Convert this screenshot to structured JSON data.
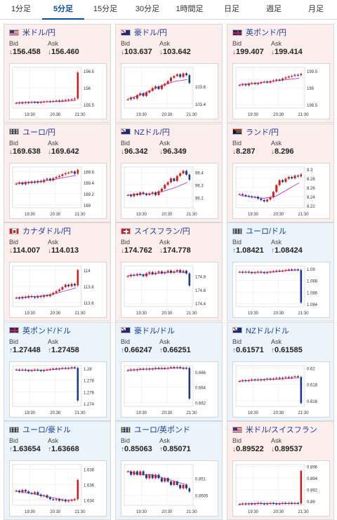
{
  "tabs": [
    {
      "label": "1分足",
      "active": false
    },
    {
      "label": "5分足",
      "active": true
    },
    {
      "label": "15分足",
      "active": false
    },
    {
      "label": "30分足",
      "active": false
    },
    {
      "label": "1時間足",
      "active": false
    },
    {
      "label": "日足",
      "active": false
    },
    {
      "label": "週足",
      "active": false
    },
    {
      "label": "月足",
      "active": false
    }
  ],
  "labels": {
    "bid": "Bid",
    "ask": "Ask",
    "down_arrow": "↓",
    "up_arrow": "↑"
  },
  "colors": {
    "down_card": "#fdeeee",
    "up_card": "#ebf4fb",
    "candle_up": "#d21e1e",
    "candle_down": "#1e3a8a",
    "ma_line": "#c23bd4"
  },
  "cards": [
    {
      "title": "米ドル/円",
      "flag": "us",
      "direction": "down",
      "bid": "156.458",
      "ask": "156.460",
      "chart_data": {
        "type": "candlestick",
        "x_ticks": [
          "19:30",
          "20:30",
          "21:30"
        ],
        "y_ticks": [
          "156.5",
          "156",
          "155.5"
        ],
        "y_range": [
          155.4,
          156.6
        ],
        "last_bar": "up",
        "closes": [
          155.55,
          155.56,
          155.55,
          155.57,
          155.56,
          155.58,
          155.57,
          155.56,
          155.58,
          155.59,
          155.6,
          155.59,
          155.61,
          155.62,
          155.6,
          155.63,
          155.64,
          155.65,
          155.66,
          155.68,
          156.45
        ],
        "ma": [
          155.56,
          155.57,
          155.58,
          155.59,
          155.6,
          155.62
        ]
      }
    },
    {
      "title": "豪ドル/円",
      "flag": "au",
      "direction": "down",
      "bid": "103.637",
      "ask": "103.642",
      "chart_data": {
        "type": "candlestick",
        "x_ticks": [
          "19:30",
          "20:30",
          "21:30"
        ],
        "y_ticks": [
          "103.6",
          "103.4"
        ],
        "y_range": [
          103.35,
          103.82
        ],
        "last_bar": "down",
        "closes": [
          103.45,
          103.47,
          103.46,
          103.5,
          103.52,
          103.49,
          103.53,
          103.55,
          103.58,
          103.6,
          103.57,
          103.61,
          103.63,
          103.66,
          103.7,
          103.72,
          103.74,
          103.71,
          103.75,
          103.73,
          103.64
        ],
        "ma": [
          103.46,
          103.5,
          103.56,
          103.62,
          103.66,
          103.68
        ]
      }
    },
    {
      "title": "英ポンド/円",
      "flag": "gb",
      "direction": "down",
      "bid": "199.407",
      "ask": "199.414",
      "chart_data": {
        "type": "candlestick",
        "x_ticks": [
          "19:30",
          "20:30",
          "21:30"
        ],
        "y_ticks": [
          "199.5",
          "199",
          "198.5"
        ],
        "y_range": [
          198.4,
          199.6
        ],
        "last_bar": "up",
        "closes": [
          199.08,
          199.1,
          199.07,
          199.12,
          199.14,
          199.11,
          199.13,
          199.16,
          199.18,
          199.15,
          199.19,
          199.21,
          199.24,
          199.22,
          199.27,
          199.3,
          199.33,
          199.35,
          199.38,
          199.37,
          199.41
        ],
        "ma": [
          199.1,
          199.12,
          199.16,
          199.2,
          199.24,
          199.28
        ]
      }
    },
    {
      "title": "ユーロ/円",
      "flag": "eu",
      "direction": "down",
      "bid": "169.638",
      "ask": "169.642",
      "chart_data": {
        "type": "candlestick",
        "x_ticks": [
          "19:30",
          "20:30",
          "21:30"
        ],
        "y_ticks": [
          "169.6",
          "169.4",
          "169.2",
          "169"
        ],
        "y_range": [
          168.95,
          169.68
        ],
        "last_bar": "down",
        "closes": [
          169.38,
          169.4,
          169.37,
          169.41,
          169.39,
          169.42,
          169.4,
          169.43,
          169.41,
          169.45,
          169.47,
          169.44,
          169.48,
          169.5,
          169.52,
          169.55,
          169.57,
          169.58,
          169.6,
          169.56,
          169.63
        ],
        "ma": [
          169.39,
          169.4,
          169.42,
          169.45,
          169.49,
          169.53
        ]
      }
    },
    {
      "title": "NZドル/円",
      "flag": "nz",
      "direction": "down",
      "bid": "96.342",
      "ask": "96.349",
      "chart_data": {
        "type": "candlestick",
        "x_ticks": [
          "19:30",
          "20:30",
          "21:30"
        ],
        "y_ticks": [
          "96.4",
          "96.3",
          "96.2"
        ],
        "y_range": [
          96.12,
          96.44
        ],
        "last_bar": "down",
        "closes": [
          96.22,
          96.21,
          96.23,
          96.22,
          96.24,
          96.23,
          96.22,
          96.23,
          96.24,
          96.22,
          96.25,
          96.27,
          96.3,
          96.32,
          96.35,
          96.33,
          96.37,
          96.39,
          96.41,
          96.38,
          96.34
        ],
        "ma": [
          96.22,
          96.23,
          96.23,
          96.25,
          96.28,
          96.32
        ]
      }
    },
    {
      "title": "ランド/円",
      "flag": "za",
      "direction": "down",
      "bid": "8.287",
      "ask": "8.296",
      "chart_data": {
        "type": "candlestick",
        "x_ticks": [
          "19:30",
          "20:30",
          "21:30"
        ],
        "y_ticks": [
          "8.3",
          "8.28",
          "8.26",
          "8.24",
          "8.22"
        ],
        "y_range": [
          8.215,
          8.305
        ],
        "last_bar": "up",
        "closes": [
          8.245,
          8.243,
          8.241,
          8.24,
          8.238,
          8.239,
          8.235,
          8.232,
          8.229,
          8.233,
          8.238,
          8.25,
          8.265,
          8.276,
          8.272,
          8.279,
          8.283,
          8.28,
          8.286,
          8.284,
          8.289
        ],
        "ma": [
          8.242,
          8.239,
          8.236,
          8.24,
          8.255,
          8.27
        ]
      }
    },
    {
      "title": "カナダドル/円",
      "flag": "ca",
      "direction": "down",
      "bid": "114.007",
      "ask": "114.013",
      "chart_data": {
        "type": "candlestick",
        "x_ticks": [
          "19:30",
          "20:30",
          "21:30"
        ],
        "y_ticks": [
          "114",
          "113.8",
          "113.6"
        ],
        "y_range": [
          113.55,
          114.05
        ],
        "last_bar": "up",
        "closes": [
          113.66,
          113.65,
          113.67,
          113.66,
          113.68,
          113.67,
          113.66,
          113.68,
          113.67,
          113.69,
          113.68,
          113.7,
          113.72,
          113.74,
          113.76,
          113.79,
          113.82,
          113.8,
          113.83,
          113.81,
          114.0
        ],
        "ma": [
          113.66,
          113.67,
          113.68,
          113.7,
          113.74,
          113.78
        ]
      }
    },
    {
      "title": "スイスフラン/円",
      "flag": "ch",
      "direction": "down",
      "bid": "174.762",
      "ask": "174.778",
      "chart_data": {
        "type": "candlestick",
        "x_ticks": [
          "19:30",
          "20:30",
          "21:30"
        ],
        "y_ticks": [
          "174.8",
          "174.6",
          "174.4"
        ],
        "y_range": [
          174.35,
          174.95
        ],
        "last_bar": "down",
        "closes": [
          174.8,
          174.82,
          174.81,
          174.83,
          174.82,
          174.8,
          174.84,
          174.86,
          174.83,
          174.85,
          174.87,
          174.84,
          174.86,
          174.88,
          174.85,
          174.87,
          174.89,
          174.86,
          174.88,
          174.84,
          174.66
        ],
        "ma": [
          174.81,
          174.82,
          174.83,
          174.85,
          174.86,
          174.85
        ]
      }
    },
    {
      "title": "ユーロ/ドル",
      "flag": "eu",
      "direction": "up",
      "bid": "1.08421",
      "ask": "1.08424",
      "chart_data": {
        "type": "candlestick",
        "x_ticks": [
          "19:30",
          "20:30",
          "21:30"
        ],
        "y_ticks": [
          "1.09",
          "1.088",
          "1.086",
          "1.084"
        ],
        "y_range": [
          1.0835,
          1.0905
        ],
        "last_bar": "down",
        "closes": [
          1.0895,
          1.0894,
          1.0895,
          1.0894,
          1.0893,
          1.0894,
          1.0895,
          1.0894,
          1.0893,
          1.0894,
          1.0895,
          1.0896,
          1.0897,
          1.0896,
          1.0897,
          1.0898,
          1.0899,
          1.0898,
          1.0899,
          1.0898,
          1.0842
        ],
        "ma": [
          1.0894,
          1.0894,
          1.0894,
          1.0895,
          1.0897,
          1.0898
        ]
      }
    },
    {
      "title": "英ポンド/ドル",
      "flag": "gb",
      "direction": "up",
      "bid": "1.27448",
      "ask": "1.27458",
      "chart_data": {
        "type": "candlestick",
        "x_ticks": [
          "19:30",
          "20:30",
          "21:30"
        ],
        "y_ticks": [
          "1.28",
          "1.278",
          "1.276",
          "1.274"
        ],
        "y_range": [
          1.2735,
          1.2805
        ],
        "last_bar": "down",
        "closes": [
          1.2798,
          1.2797,
          1.2798,
          1.2797,
          1.2796,
          1.2797,
          1.2798,
          1.2797,
          1.2796,
          1.2797,
          1.2798,
          1.2799,
          1.28,
          1.2799,
          1.28,
          1.2801,
          1.28,
          1.2801,
          1.2802,
          1.2801,
          1.2745
        ],
        "ma": [
          1.2797,
          1.2797,
          1.2797,
          1.2798,
          1.28,
          1.2801
        ]
      }
    },
    {
      "title": "豪ドル/ドル",
      "flag": "au",
      "direction": "up",
      "bid": "0.66247",
      "ask": "0.66251",
      "chart_data": {
        "type": "candlestick",
        "x_ticks": [
          "19:30",
          "20:30",
          "21:30"
        ],
        "y_ticks": [
          "0.666",
          "0.664",
          "0.662"
        ],
        "y_range": [
          0.6615,
          0.6668
        ],
        "last_bar": "down",
        "closes": [
          0.6662,
          0.6663,
          0.6662,
          0.6663,
          0.6664,
          0.6663,
          0.6664,
          0.6663,
          0.6664,
          0.6665,
          0.6664,
          0.6665,
          0.6664,
          0.6665,
          0.6666,
          0.6665,
          0.6666,
          0.6665,
          0.6664,
          0.6665,
          0.6625
        ],
        "ma": [
          0.6662,
          0.6663,
          0.6664,
          0.6664,
          0.6665,
          0.6665
        ]
      }
    },
    {
      "title": "NZドル/ドル",
      "flag": "nz",
      "direction": "up",
      "bid": "0.61571",
      "ask": "0.61585",
      "chart_data": {
        "type": "candlestick",
        "x_ticks": [
          "19:30",
          "20:30",
          "21:30"
        ],
        "y_ticks": [
          "0.62",
          "0.618",
          "0.616"
        ],
        "y_range": [
          0.6153,
          0.6203
        ],
        "last_bar": "down",
        "closes": [
          0.6184,
          0.6185,
          0.6184,
          0.6185,
          0.6186,
          0.6185,
          0.6186,
          0.6185,
          0.6186,
          0.6187,
          0.6186,
          0.6187,
          0.6188,
          0.6187,
          0.6188,
          0.6189,
          0.6188,
          0.6189,
          0.619,
          0.6189,
          0.6157
        ],
        "ma": [
          0.6184,
          0.6185,
          0.6186,
          0.6186,
          0.6187,
          0.6188
        ]
      }
    },
    {
      "title": "ユーロ/豪ドル",
      "flag": "eu",
      "direction": "up",
      "bid": "1.63654",
      "ask": "1.63668",
      "chart_data": {
        "type": "candlestick",
        "x_ticks": [
          "19:30",
          "20:30",
          "21:30"
        ],
        "y_ticks": [
          "1.638",
          "1.636",
          "1.634"
        ],
        "y_range": [
          1.6333,
          1.6386
        ],
        "last_bar": "up",
        "closes": [
          1.6352,
          1.635,
          1.6353,
          1.6351,
          1.6349,
          1.6348,
          1.635,
          1.6347,
          1.6345,
          1.6346,
          1.6343,
          1.6341,
          1.634,
          1.6341,
          1.6339,
          1.634,
          1.6338,
          1.6339,
          1.634,
          1.6341,
          1.6366
        ],
        "ma": [
          1.6351,
          1.6349,
          1.6346,
          1.6343,
          1.634,
          1.634
        ]
      }
    },
    {
      "title": "ユーロ/英ポンド",
      "flag": "eu",
      "direction": "up",
      "bid": "0.85063",
      "ask": "0.85071",
      "chart_data": {
        "type": "candlestick",
        "x_ticks": [
          "19:30",
          "20:30",
          "21:30"
        ],
        "y_ticks": [
          "0.851",
          "0.8505"
        ],
        "y_range": [
          0.8502,
          0.8514
        ],
        "last_bar": "down",
        "closes": [
          0.8512,
          0.8511,
          0.8512,
          0.8511,
          0.8512,
          0.8511,
          0.851,
          0.8511,
          0.851,
          0.8511,
          0.851,
          0.8509,
          0.851,
          0.8509,
          0.8508,
          0.8509,
          0.8508,
          0.8507,
          0.8508,
          0.8507,
          0.8506
        ],
        "ma": [
          0.8512,
          0.8511,
          0.8511,
          0.851,
          0.8509,
          0.8508
        ]
      }
    },
    {
      "title": "米ドル/スイスフラン",
      "flag": "us",
      "direction": "down",
      "bid": "0.89522",
      "ask": "0.89537",
      "chart_data": {
        "type": "candlestick",
        "x_ticks": [
          "19:30",
          "20:30",
          "21:30"
        ],
        "y_ticks": [
          "0.896",
          "0.894",
          "0.892",
          "0.89"
        ],
        "y_range": [
          0.8893,
          0.8963
        ],
        "last_bar": "up",
        "closes": [
          0.8895,
          0.8896,
          0.8895,
          0.8896,
          0.8895,
          0.8896,
          0.8897,
          0.8896,
          0.8895,
          0.8896,
          0.8897,
          0.8896,
          0.8895,
          0.8896,
          0.8897,
          0.8896,
          0.8897,
          0.8896,
          0.8897,
          0.8896,
          0.8952
        ],
        "ma": [
          0.8895,
          0.8896,
          0.8896,
          0.8896,
          0.8896,
          0.8896
        ]
      }
    }
  ]
}
